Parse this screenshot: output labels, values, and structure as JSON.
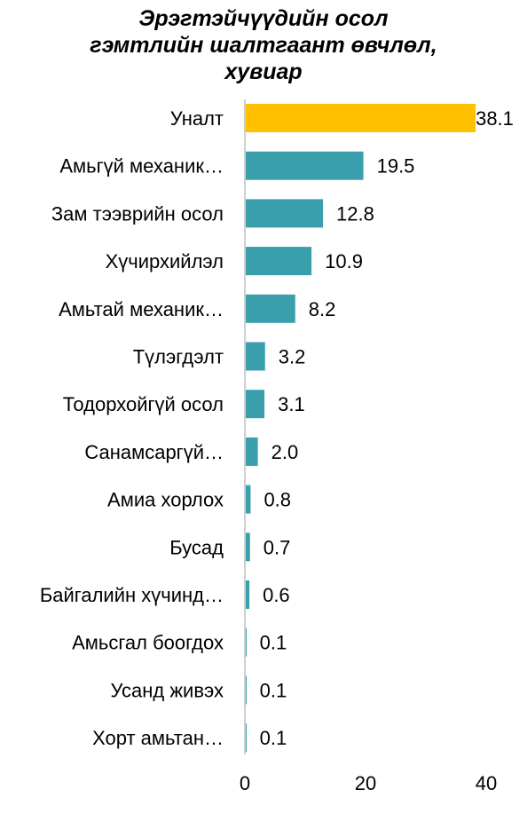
{
  "chart_data": {
    "type": "bar",
    "orientation": "horizontal",
    "title_lines": [
      "Эрэгтэйчүүдийн осол",
      "гэмтлийн шалтгаант өвчлөл,",
      "хувиар"
    ],
    "categories": [
      "Уналт",
      "Амьгүй механик…",
      "Зам тээврийн осол",
      "Хүчирхийлэл",
      "Амьтай механик…",
      "Түлэгдэлт",
      "Тодорхойгүй осол",
      "Санамсаргүй…",
      "Амиа хорлох",
      "Бусад",
      "Байгалийн хүчинд…",
      "Амьсгал боогдох",
      "Усанд живэх",
      "Хорт амьтан…"
    ],
    "values": [
      38.1,
      19.5,
      12.8,
      10.9,
      8.2,
      3.2,
      3.1,
      2.0,
      0.8,
      0.7,
      0.6,
      0.1,
      0.1,
      0.1
    ],
    "value_labels": [
      "38.1",
      "19.5",
      "12.8",
      "10.9",
      "8.2",
      "3.2",
      "3.1",
      "2.0",
      "0.8",
      "0.7",
      "0.6",
      "0.1",
      "0.1",
      "0.1"
    ],
    "highlight_index": 0,
    "colors": {
      "highlight": "#FFC000",
      "bar": "#3A9FAD",
      "axis": "#BFBFBF"
    },
    "xlim": [
      0,
      40
    ],
    "xticks": [
      0,
      20,
      40
    ],
    "xtick_labels": [
      "0",
      "20",
      "40"
    ],
    "grid": false,
    "legend": "none"
  }
}
